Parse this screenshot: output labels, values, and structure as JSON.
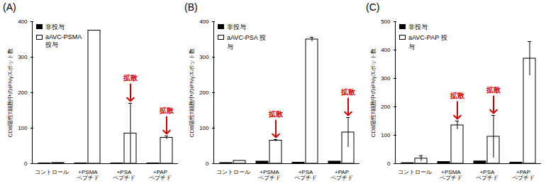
{
  "chart_data": [
    {
      "type": "bar",
      "title": "(A)",
      "ylabel": "CD8陽性T細胞中のIFNγスポット数",
      "categories": [
        "コントロール",
        "+PSMA ペプチド",
        "+PSA ペプチド",
        "+PAP ペプチド"
      ],
      "series": [
        {
          "name": "非投与",
          "color": "#000000",
          "values": [
            1,
            1,
            1,
            1
          ]
        },
        {
          "name": "aAVC-PSMA 投与",
          "color": "#ffffff",
          "values": [
            2,
            375,
            85,
            73
          ],
          "errors": [
            0,
            0,
            85,
            5
          ]
        }
      ],
      "ylim": [
        0,
        400
      ],
      "yticks": [
        0,
        100,
        200,
        300,
        400
      ],
      "legend": "top-left",
      "annotations": [
        {
          "text": "拡散",
          "category": "+PSA ペプチド",
          "series": "aAVC-PSMA 投与"
        },
        {
          "text": "拡散",
          "category": "+PAP ペプチド",
          "series": "aAVC-PSMA 投与"
        }
      ]
    },
    {
      "type": "bar",
      "title": "(B)",
      "ylabel": "CD8陽性T細胞中のIFNγスポット数",
      "categories": [
        "コントロール",
        "+PSMA ペプチド",
        "+PSA ペプチド",
        "+PAP ペプチド"
      ],
      "series": [
        {
          "name": "非投与",
          "color": "#000000",
          "values": [
            2,
            6,
            3,
            6
          ]
        },
        {
          "name": "aAVC-PSA 投与",
          "color": "#ffffff",
          "values": [
            8,
            65,
            350,
            88
          ],
          "errors": [
            0,
            3,
            6,
            42
          ]
        }
      ],
      "ylim": [
        0,
        400
      ],
      "yticks": [
        0,
        100,
        200,
        300,
        400
      ],
      "legend": "top-left",
      "annotations": [
        {
          "text": "拡散",
          "category": "+PSMA ペプチド",
          "series": "aAVC-PSA 投与"
        },
        {
          "text": "拡散",
          "category": "+PAP ペプチド",
          "series": "aAVC-PSA 投与"
        }
      ]
    },
    {
      "type": "bar",
      "title": "(C)",
      "ylabel": "CD8陽性T細胞中のIFNγスポット数",
      "categories": [
        "コントロール",
        "+PSMA ペプチド",
        "+PSA ペプチド",
        "+PAP ペプチド"
      ],
      "series": [
        {
          "name": "非投与",
          "color": "#000000",
          "values": [
            2,
            6,
            8,
            4
          ]
        },
        {
          "name": "aAVC-PAP 投与",
          "color": "#ffffff",
          "values": [
            18,
            135,
            95,
            370
          ],
          "errors": [
            10,
            15,
            75,
            60
          ]
        }
      ],
      "ylim": [
        0,
        500
      ],
      "yticks": [
        0,
        100,
        200,
        300,
        400,
        500
      ],
      "legend": "top-left",
      "annotations": [
        {
          "text": "拡散",
          "category": "+PSMA ペプチド",
          "series": "aAVC-PAP 投与"
        },
        {
          "text": "拡散",
          "category": "+PSA ペプチド",
          "series": "aAVC-PAP 投与"
        }
      ]
    }
  ]
}
